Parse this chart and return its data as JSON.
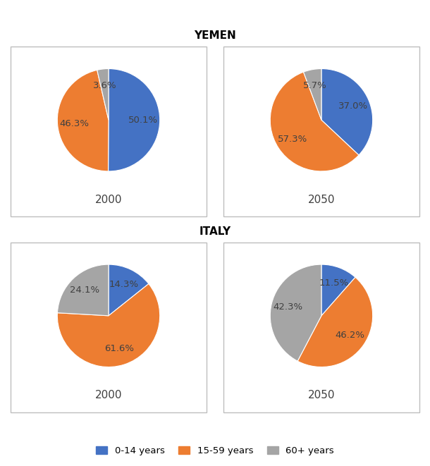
{
  "title_yemen": "YEMEN",
  "title_italy": "ITALY",
  "colors": {
    "0-14 years": "#4472C4",
    "15-59 years": "#ED7D31",
    "60+ years": "#A5A5A5"
  },
  "charts": {
    "yemen_2000": {
      "label": "2000",
      "values": [
        50.1,
        46.3,
        3.6
      ],
      "startangle": 90
    },
    "yemen_2050": {
      "label": "2050",
      "values": [
        37.0,
        57.3,
        5.7
      ],
      "startangle": 90
    },
    "italy_2000": {
      "label": "2000",
      "values": [
        14.3,
        61.6,
        24.1
      ],
      "startangle": 90
    },
    "italy_2050": {
      "label": "2050",
      "values": [
        11.5,
        46.2,
        42.3
      ],
      "startangle": 90
    }
  },
  "categories": [
    "0-14 years",
    "15-59 years",
    "60+ years"
  ],
  "legend_labels": [
    "0-14 years",
    "15-59 years",
    "60+ years"
  ],
  "background_color": "#FFFFFF",
  "box_color": "#BEBEBE",
  "label_color": "#404040",
  "title_fontsize": 11,
  "year_fontsize": 11,
  "pct_fontsize": 9.5
}
